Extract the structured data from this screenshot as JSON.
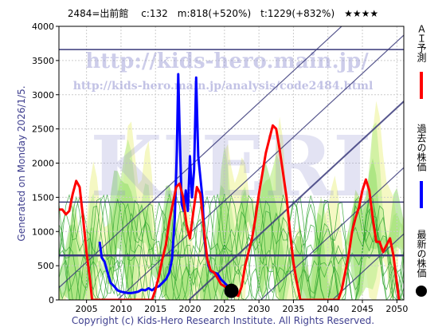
{
  "header": {
    "title": "2484=出前館　 c:132　m:818(+520%)　t:1229(+832%)　★★★★"
  },
  "side_label": "Generated on Monday 2026/1/5.",
  "footer": "Copyright (c) Kids-Hero Research Institute. All Rights Reserved.",
  "watermark": {
    "url": "http://kids-hero.main.jp/",
    "analysis_url": "http://kids-hero.main.jp/analysis/code2484.html",
    "big": "KIERI"
  },
  "legend": [
    {
      "label": "ＡＩ予測",
      "color": "#ff0000",
      "kind": "line"
    },
    {
      "label": "過去の株価",
      "color": "#0000ff",
      "kind": "line"
    },
    {
      "label": "最新の株価",
      "color": "#000000",
      "kind": "dot"
    }
  ],
  "chart_data": {
    "type": "line",
    "x_range": [
      2001,
      2051
    ],
    "y_range": [
      0,
      4000
    ],
    "x_ticks": [
      2005,
      2010,
      2015,
      2020,
      2025,
      2030,
      2035,
      2040,
      2045,
      2050
    ],
    "y_ticks": [
      0,
      500,
      1000,
      1500,
      2000,
      2500,
      3000,
      3500,
      4000
    ],
    "horizontal_levels": [
      650,
      1430,
      3660
    ],
    "series": [
      {
        "name": "過去の株価",
        "color": "#0000ff",
        "points": [
          [
            2006.9,
            850
          ],
          [
            2007.2,
            620
          ],
          [
            2007.6,
            560
          ],
          [
            2008,
            420
          ],
          [
            2008.5,
            250
          ],
          [
            2009,
            200
          ],
          [
            2009.5,
            140
          ],
          [
            2010,
            120
          ],
          [
            2010.5,
            110
          ],
          [
            2011,
            100
          ],
          [
            2011.5,
            100
          ],
          [
            2012,
            110
          ],
          [
            2012.5,
            120
          ],
          [
            2013,
            150
          ],
          [
            2013.5,
            140
          ],
          [
            2014,
            170
          ],
          [
            2014.5,
            140
          ],
          [
            2015,
            180
          ],
          [
            2015.5,
            200
          ],
          [
            2016,
            250
          ],
          [
            2016.5,
            300
          ],
          [
            2017,
            400
          ],
          [
            2017.4,
            600
          ],
          [
            2017.8,
            1200
          ],
          [
            2018.1,
            2200
          ],
          [
            2018.3,
            3300
          ],
          [
            2018.5,
            2500
          ],
          [
            2018.8,
            1400
          ],
          [
            2019.1,
            1300
          ],
          [
            2019.4,
            1600
          ],
          [
            2019.7,
            1300
          ],
          [
            2020,
            2100
          ],
          [
            2020.3,
            1500
          ],
          [
            2020.6,
            1900
          ],
          [
            2020.9,
            3250
          ],
          [
            2021.2,
            2100
          ],
          [
            2021.5,
            1800
          ],
          [
            2021.8,
            1500
          ],
          [
            2022.1,
            900
          ],
          [
            2022.4,
            650
          ],
          [
            2022.7,
            500
          ],
          [
            2023,
            420
          ],
          [
            2023.5,
            400
          ],
          [
            2024,
            380
          ],
          [
            2024.5,
            300
          ],
          [
            2025,
            250
          ],
          [
            2025.5,
            200
          ],
          [
            2025.8,
            140
          ]
        ]
      },
      {
        "name": "ＡＩ予測",
        "color": "#ff0000",
        "points": [
          [
            2001,
            1320
          ],
          [
            2001.5,
            1320
          ],
          [
            2002,
            1250
          ],
          [
            2002.5,
            1300
          ],
          [
            2003,
            1550
          ],
          [
            2003.5,
            1740
          ],
          [
            2004,
            1650
          ],
          [
            2004.5,
            1200
          ],
          [
            2005,
            700
          ],
          [
            2005.5,
            300
          ],
          [
            2005.8,
            0
          ],
          [
            2014.5,
            0
          ],
          [
            2015,
            150
          ],
          [
            2015.5,
            350
          ],
          [
            2016,
            600
          ],
          [
            2016.5,
            800
          ],
          [
            2017,
            1150
          ],
          [
            2017.5,
            1400
          ],
          [
            2018,
            1650
          ],
          [
            2018.5,
            1700
          ],
          [
            2019,
            1500
          ],
          [
            2019.5,
            1100
          ],
          [
            2020,
            900
          ],
          [
            2020.5,
            1300
          ],
          [
            2021,
            1650
          ],
          [
            2021.5,
            1550
          ],
          [
            2022,
            1050
          ],
          [
            2022.5,
            600
          ],
          [
            2023,
            430
          ],
          [
            2023.5,
            400
          ],
          [
            2024,
            320
          ],
          [
            2024.5,
            230
          ],
          [
            2025,
            200
          ],
          [
            2026,
            130
          ],
          [
            2026.5,
            80
          ],
          [
            2027,
            60
          ],
          [
            2027.5,
            200
          ],
          [
            2028,
            500
          ],
          [
            2029,
            900
          ],
          [
            2029.5,
            1200
          ],
          [
            2030,
            1550
          ],
          [
            2031,
            2150
          ],
          [
            2032,
            2550
          ],
          [
            2032.5,
            2500
          ],
          [
            2033,
            2200
          ],
          [
            2034,
            1500
          ],
          [
            2034.5,
            1000
          ],
          [
            2035,
            550
          ],
          [
            2035.5,
            250
          ],
          [
            2036,
            0
          ],
          [
            2041.5,
            0
          ],
          [
            2042,
            150
          ],
          [
            2042.5,
            400
          ],
          [
            2043,
            650
          ],
          [
            2043.5,
            1000
          ],
          [
            2044,
            1200
          ],
          [
            2044.5,
            1350
          ],
          [
            2045,
            1600
          ],
          [
            2045.5,
            1760
          ],
          [
            2046,
            1600
          ],
          [
            2046.5,
            1200
          ],
          [
            2047,
            850
          ],
          [
            2047.5,
            850
          ],
          [
            2048,
            700
          ],
          [
            2048.5,
            800
          ],
          [
            2049,
            900
          ],
          [
            2049.5,
            650
          ],
          [
            2050,
            250
          ],
          [
            2050.3,
            0
          ]
        ]
      }
    ],
    "latest": {
      "x": 2026,
      "y": 132
    }
  }
}
